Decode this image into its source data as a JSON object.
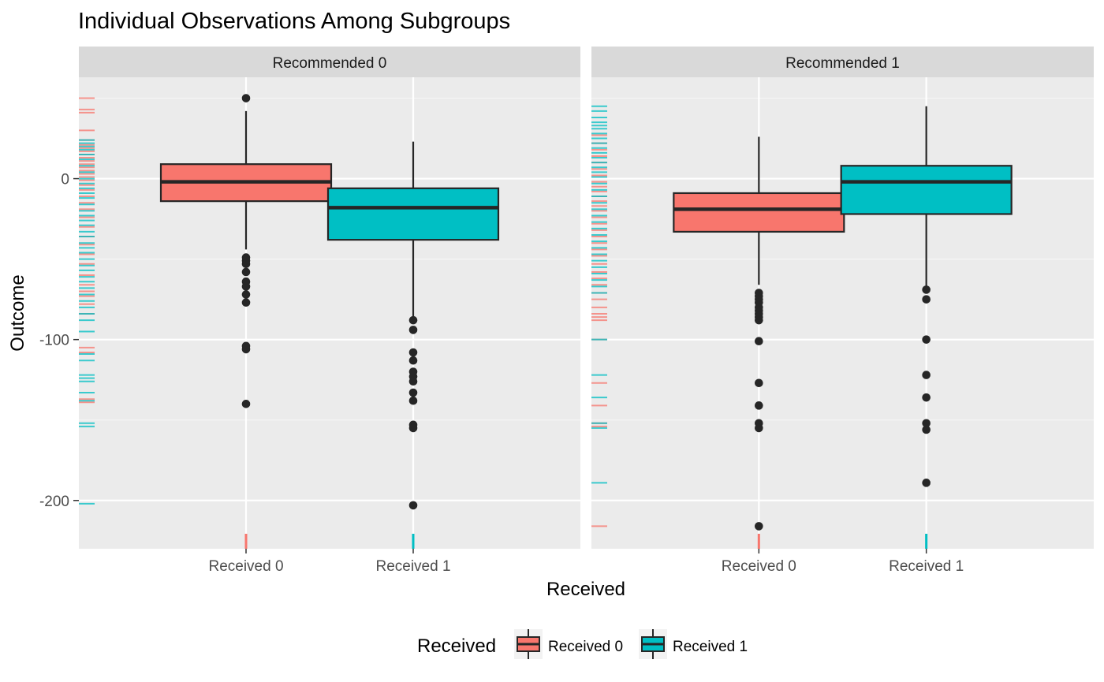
{
  "chart_data": {
    "type": "boxplot",
    "title": "Individual Observations Among Subgroups",
    "xlabel": "Received",
    "ylabel": "Outcome",
    "ylim": [
      -230,
      63
    ],
    "y_ticks": [
      0,
      -100,
      -200
    ],
    "y_tick_labels": [
      "0",
      "-100",
      "-200"
    ],
    "categories": [
      "Received 0",
      "Received 1"
    ],
    "colors": {
      "Received 0": "#F8766D",
      "Received 1": "#00BFC4"
    },
    "legend": {
      "title": "Received",
      "position": "bottom",
      "entries": [
        {
          "label": "Received 0",
          "color": "#F8766D"
        },
        {
          "label": "Received 1",
          "color": "#00BFC4"
        }
      ]
    },
    "panels": [
      {
        "label": "Recommended 0",
        "boxes": [
          {
            "category": "Received 0",
            "q1": -14,
            "median": -2,
            "q3": 9,
            "whisker_low": -44,
            "whisker_high": 42,
            "outliers": [
              50,
              -49,
              -51,
              -53,
              -58,
              -64,
              -67,
              -72,
              -77,
              -104,
              -106,
              -140
            ]
          },
          {
            "category": "Received 1",
            "q1": -38,
            "median": -18,
            "q3": -6,
            "whisker_low": -87,
            "whisker_high": 23,
            "outliers": [
              -88,
              -94,
              -108,
              -113,
              -120,
              -123,
              -126,
              -133,
              -138,
              -153,
              -155,
              -203
            ]
          }
        ],
        "rug": [
          {
            "category": "Received 0",
            "values": [
              50,
              43,
              41,
              30,
              24,
              21,
              19,
              17,
              15,
              13,
              11,
              9,
              7,
              5,
              3,
              1,
              -1,
              -4,
              -7,
              -11,
              -15,
              -19,
              -24,
              -30,
              -36,
              -41,
              -47,
              -53,
              -60,
              -66,
              -70,
              -73,
              -78,
              -84,
              -105,
              -108,
              -137,
              -139
            ]
          },
          {
            "category": "Received 1",
            "values": [
              24,
              22,
              20,
              18,
              15,
              12,
              8,
              4,
              0,
              -3,
              -6,
              -9,
              -12,
              -16,
              -20,
              -23,
              -26,
              -29,
              -33,
              -36,
              -40,
              -43,
              -46,
              -50,
              -54,
              -57,
              -61,
              -64,
              -68,
              -72,
              -76,
              -80,
              -84,
              -88,
              -95,
              -109,
              -113,
              -122,
              -124,
              -126,
              -133,
              -138,
              -152,
              -154,
              -202
            ]
          }
        ]
      },
      {
        "label": "Recommended 1",
        "boxes": [
          {
            "category": "Received 0",
            "q1": -33,
            "median": -19,
            "q3": -9,
            "whisker_low": -66,
            "whisker_high": 26,
            "outliers": [
              -71,
              -73,
              -75,
              -77,
              -80,
              -82,
              -84,
              -86,
              -88,
              -101,
              -127,
              -141,
              -152,
              -155,
              -216
            ]
          },
          {
            "category": "Received 1",
            "q1": -22,
            "median": -2,
            "q3": 8,
            "whisker_low": -68,
            "whisker_high": 45,
            "outliers": [
              -69,
              -75,
              -100,
              -122,
              -136,
              -152,
              -156,
              -189
            ]
          }
        ],
        "rug": [
          {
            "category": "Received 0",
            "values": [
              27,
              22,
              18,
              14,
              10,
              6,
              2,
              -2,
              -5,
              -8,
              -11,
              -14,
              -17,
              -20,
              -24,
              -28,
              -32,
              -36,
              -40,
              -44,
              -48,
              -53,
              -58,
              -62,
              -66,
              -71,
              -75,
              -80,
              -84,
              -86,
              -88,
              -100,
              -127,
              -141,
              -152,
              -154,
              -216
            ]
          },
          {
            "category": "Received 1",
            "values": [
              45,
              42,
              38,
              35,
              33,
              31,
              28,
              25,
              22,
              19,
              16,
              13,
              10,
              7,
              4,
              1,
              -3,
              -7,
              -11,
              -15,
              -19,
              -23,
              -27,
              -31,
              -35,
              -39,
              -43,
              -47,
              -51,
              -55,
              -59,
              -63,
              -67,
              -71,
              -100,
              -122,
              -136,
              -152,
              -155,
              -189
            ]
          }
        ]
      }
    ]
  }
}
